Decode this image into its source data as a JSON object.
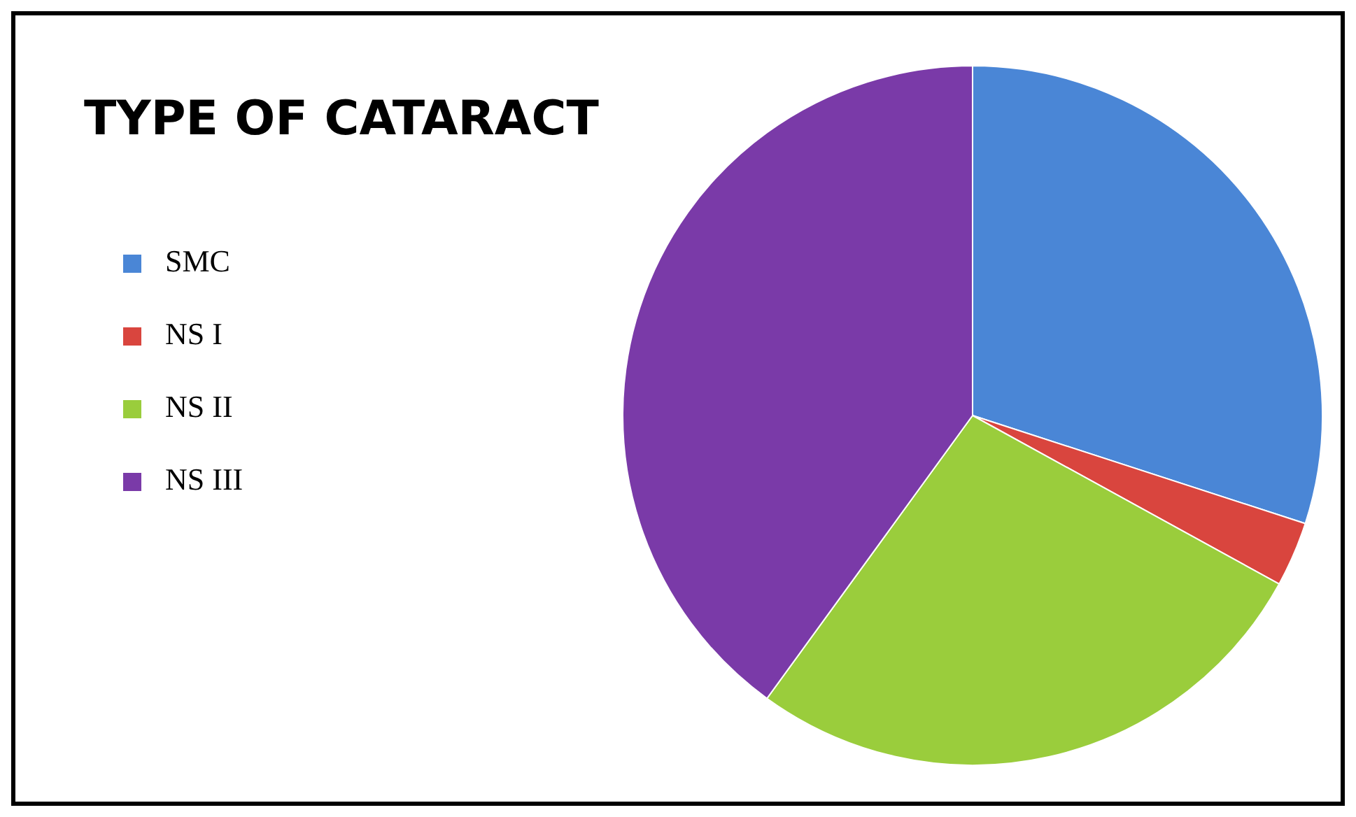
{
  "chart_data": {
    "type": "pie",
    "title": "TYPE OF CATARACT",
    "categories": [
      "SMC",
      "NS I",
      "NS II",
      "NS III"
    ],
    "values": [
      30,
      3,
      27,
      40
    ],
    "colors": [
      "#4a86d6",
      "#d9453e",
      "#9acd3c",
      "#7a3aa8"
    ],
    "legend": "left"
  }
}
